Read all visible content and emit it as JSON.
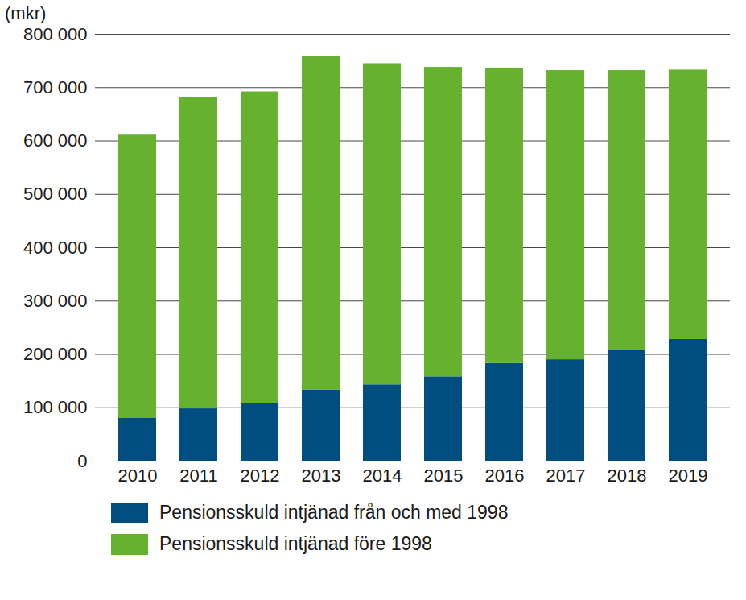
{
  "chart_data": {
    "type": "bar",
    "stacked": true,
    "ylabel": "(mkr)",
    "categories": [
      "2010",
      "2011",
      "2012",
      "2013",
      "2014",
      "2015",
      "2016",
      "2017",
      "2018",
      "2019"
    ],
    "series": [
      {
        "name": "Pensionsskuld intjänad från och med 1998",
        "color": "#004e80",
        "values": [
          80000,
          98000,
          108000,
          133000,
          143000,
          158000,
          183000,
          190000,
          207000,
          228000
        ]
      },
      {
        "name": "Pensionsskuld intjänad före 1998",
        "color": "#66b22f",
        "values": [
          531000,
          584000,
          584000,
          626000,
          602000,
          580000,
          553000,
          542000,
          525000,
          505000
        ]
      }
    ],
    "ylim": [
      0,
      800000
    ],
    "yticks": [
      0,
      {
        "value": 100000,
        "label": "100 000"
      },
      {
        "value": 200000,
        "label": "200 000"
      },
      {
        "value": 300000,
        "label": "300 000"
      },
      {
        "value": 400000,
        "label": "400 000"
      },
      {
        "value": 500000,
        "label": "500 000"
      },
      {
        "value": 600000,
        "label": "600 000"
      },
      {
        "value": 700000,
        "label": "700 000"
      },
      {
        "value": 800000,
        "label": "800 000"
      }
    ],
    "grid": true,
    "legend": "bottom"
  }
}
